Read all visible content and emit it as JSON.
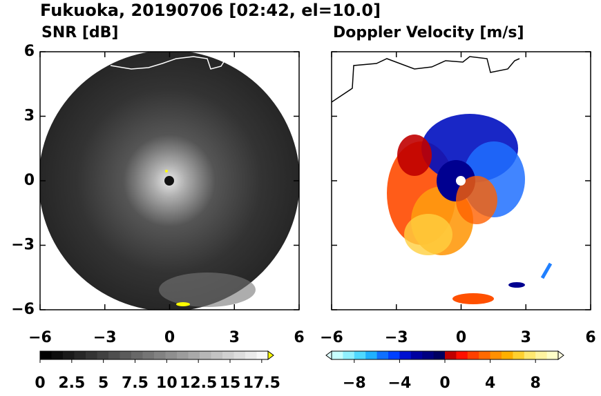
{
  "title": "Fukuoka, 20190706 [02:42, el=10.0]",
  "chart_data": [
    {
      "type": "image",
      "subtitle": "SNR [dB]",
      "xlim": [
        -6,
        6
      ],
      "ylim": [
        -6,
        6
      ],
      "xticks": [
        {
          "value": -6,
          "label": "−6"
        },
        {
          "value": -3,
          "label": "−3"
        },
        0,
        3,
        6
      ],
      "yticks": [
        {
          "value": -6,
          "label": "−6"
        },
        {
          "value": -3,
          "label": "−3"
        },
        0,
        3,
        6
      ],
      "colorbar": {
        "clim": [
          0,
          18
        ],
        "extend": "max",
        "ticks": [
          0,
          2.5,
          5,
          7.5,
          10,
          12.5,
          15,
          17.5
        ],
        "colors": [
          "#000000",
          "#0d0d0d",
          "#1a1a1a",
          "#272727",
          "#343434",
          "#414141",
          "#4e4e4e",
          "#5b5b5b",
          "#686868",
          "#757575",
          "#828282",
          "#8f8f8f",
          "#9c9c9c",
          "#a9a9a9",
          "#b6b6b6",
          "#c3c3c3",
          "#d0d0d0",
          "#dddddd",
          "#eaeaea",
          "#f7f7f7"
        ],
        "extend_color": "#ffff00"
      }
    },
    {
      "type": "image",
      "subtitle": "Doppler Velocity [m/s]",
      "xlim": [
        -6,
        6
      ],
      "ylim": [
        -6,
        6
      ],
      "xticks": [
        {
          "value": -6,
          "label": "−6"
        },
        {
          "value": -3,
          "label": "−3"
        },
        0,
        3,
        6
      ],
      "yticks": [
        {
          "value": -6,
          "label": "−6"
        },
        {
          "value": -3,
          "label": "−3"
        },
        0,
        3,
        6
      ],
      "colorbar": {
        "clim": [
          -10,
          10
        ],
        "extend": "both",
        "ticks": [
          {
            "value": -8,
            "label": "−8"
          },
          {
            "value": -4,
            "label": "−4"
          },
          0,
          4,
          8
        ],
        "colors": [
          "#c8ffff",
          "#90f0ff",
          "#50d8ff",
          "#20b0ff",
          "#1070ff",
          "#0040ff",
          "#0010d0",
          "#0000a0",
          "#000080",
          "#000060",
          "#c00000",
          "#ff1000",
          "#ff4000",
          "#ff6a00",
          "#ff9000",
          "#ffb000",
          "#ffd030",
          "#ffe870",
          "#fff4a0",
          "#ffffc8"
        ],
        "extend_color_low": "#e0ffff",
        "extend_color_high": "#ffffe0"
      }
    }
  ]
}
